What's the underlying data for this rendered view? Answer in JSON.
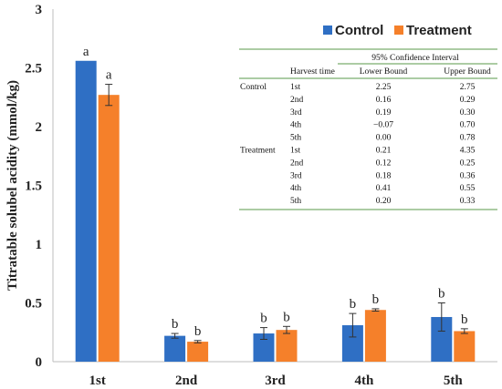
{
  "chart_data": {
    "type": "bar",
    "ylabel": "Titratable solubel acidity (mmol/kg)",
    "xlabel": "",
    "ylim": [
      0,
      3
    ],
    "yticks": [
      "0",
      "0.5",
      "1",
      "1.5",
      "2",
      "2.5",
      "3"
    ],
    "categories": [
      "1st",
      "2nd",
      "3rd",
      "4th",
      "5th"
    ],
    "legend_position": "top-right",
    "series": [
      {
        "name": "Control",
        "color": "#2f6fc4",
        "values": [
          2.56,
          0.22,
          0.24,
          0.31,
          0.38
        ],
        "errors": [
          0.0,
          0.02,
          0.05,
          0.1,
          0.12
        ],
        "letters": [
          "a",
          "b",
          "b",
          "b",
          "b"
        ]
      },
      {
        "name": "Treatment",
        "color": "#f5802a",
        "values": [
          2.27,
          0.17,
          0.27,
          0.44,
          0.26
        ],
        "errors": [
          0.09,
          0.01,
          0.03,
          0.01,
          0.02
        ],
        "letters": [
          "a",
          "b",
          "b",
          "b",
          "b"
        ]
      }
    ],
    "ci_table": {
      "title": "95% Confidence Interval",
      "headers": [
        "Harvest time",
        "Lower Bound",
        "Upper Bound"
      ],
      "rows": [
        {
          "group": "Control",
          "harvest": "1st",
          "lower": "2.25",
          "upper": "2.75"
        },
        {
          "group": "",
          "harvest": "2nd",
          "lower": "0.16",
          "upper": "0.29"
        },
        {
          "group": "",
          "harvest": "3rd",
          "lower": "0.19",
          "upper": "0.30"
        },
        {
          "group": "",
          "harvest": "4th",
          "lower": "−0.07",
          "upper": "0.70"
        },
        {
          "group": "",
          "harvest": "5th",
          "lower": "0.00",
          "upper": "0.78"
        },
        {
          "group": "Treatment",
          "harvest": "1st",
          "lower": "0.21",
          "upper": "4.35"
        },
        {
          "group": "",
          "harvest": "2nd",
          "lower": "0.12",
          "upper": "0.25"
        },
        {
          "group": "",
          "harvest": "3rd",
          "lower": "0.18",
          "upper": "0.36"
        },
        {
          "group": "",
          "harvest": "4th",
          "lower": "0.41",
          "upper": "0.55"
        },
        {
          "group": "",
          "harvest": "5th",
          "lower": "0.20",
          "upper": "0.33"
        }
      ]
    }
  }
}
